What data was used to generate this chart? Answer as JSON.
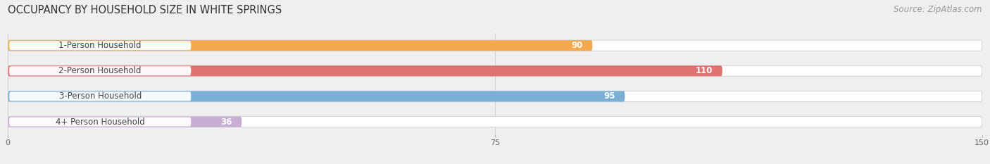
{
  "title": "OCCUPANCY BY HOUSEHOLD SIZE IN WHITE SPRINGS",
  "source": "Source: ZipAtlas.com",
  "categories": [
    "1-Person Household",
    "2-Person Household",
    "3-Person Household",
    "4+ Person Household"
  ],
  "values": [
    90,
    110,
    95,
    36
  ],
  "bar_colors": [
    "#f6a84e",
    "#e07272",
    "#7aafd6",
    "#c8aed2"
  ],
  "value_labels": [
    "90",
    "110",
    "95",
    "36"
  ],
  "xlim": [
    0,
    150
  ],
  "xticks": [
    0,
    75,
    150
  ],
  "background_color": "#efefef",
  "title_fontsize": 10.5,
  "source_fontsize": 8.5,
  "label_fontsize": 8.5,
  "value_fontsize": 8.5,
  "bar_height": 0.42
}
